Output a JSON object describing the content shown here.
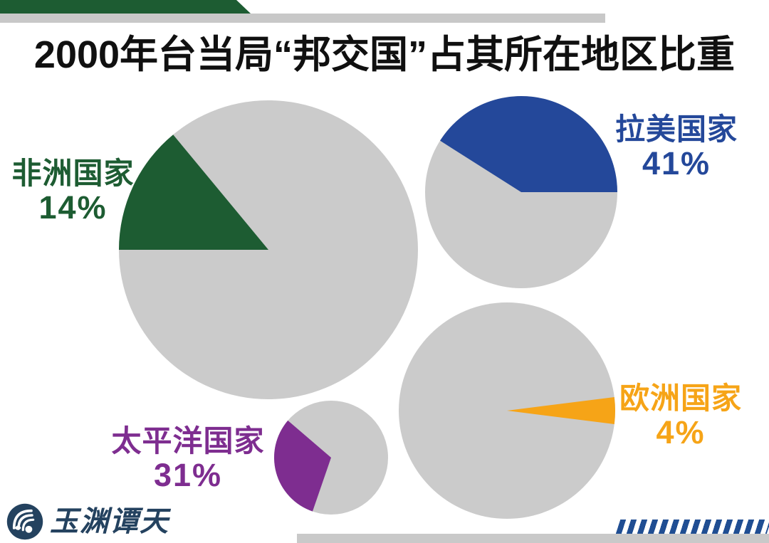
{
  "page": {
    "background_color": "#ffffff"
  },
  "header": {
    "title": "2000年台当局“邦交国”占其所在地区比重",
    "title_color": "#101010",
    "green_bar_color": "#1d5c32",
    "gray_bar_color": "#c8c8c8"
  },
  "chart_data": {
    "type": "pie",
    "title": "2000年台当局“邦交国”占其所在地区比重",
    "description": "Four pie charts, each showing the share (gray = remainder) of Taiwan authorities' diplomatic allies within a world region in 2000",
    "unit": "percent",
    "pies": [
      {
        "id": "africa",
        "label": "非洲国家",
        "value": 14,
        "value_label": "14%",
        "slice_color": "#1d5c32",
        "rest_color": "#cbcbcb"
      },
      {
        "id": "latin-america",
        "label": "拉美国家",
        "value": 41,
        "value_label": "41%",
        "slice_color": "#24489a",
        "rest_color": "#cbcbcb"
      },
      {
        "id": "pacific",
        "label": "太平洋国家",
        "value": 31,
        "value_label": "31%",
        "slice_color": "#7e2d90",
        "rest_color": "#cbcbcb"
      },
      {
        "id": "europe",
        "label": "欧洲国家",
        "value": 4,
        "value_label": "4%",
        "slice_color": "#f6a417",
        "rest_color": "#cbcbcb"
      }
    ],
    "legend_position": "beside-each-pie",
    "grid": false
  },
  "footer": {
    "logo_text": "玉渊谭天",
    "logo_color": "#24425f",
    "hatch_color": "#204e93",
    "bottom_bar_color": "#c9c9c9"
  }
}
